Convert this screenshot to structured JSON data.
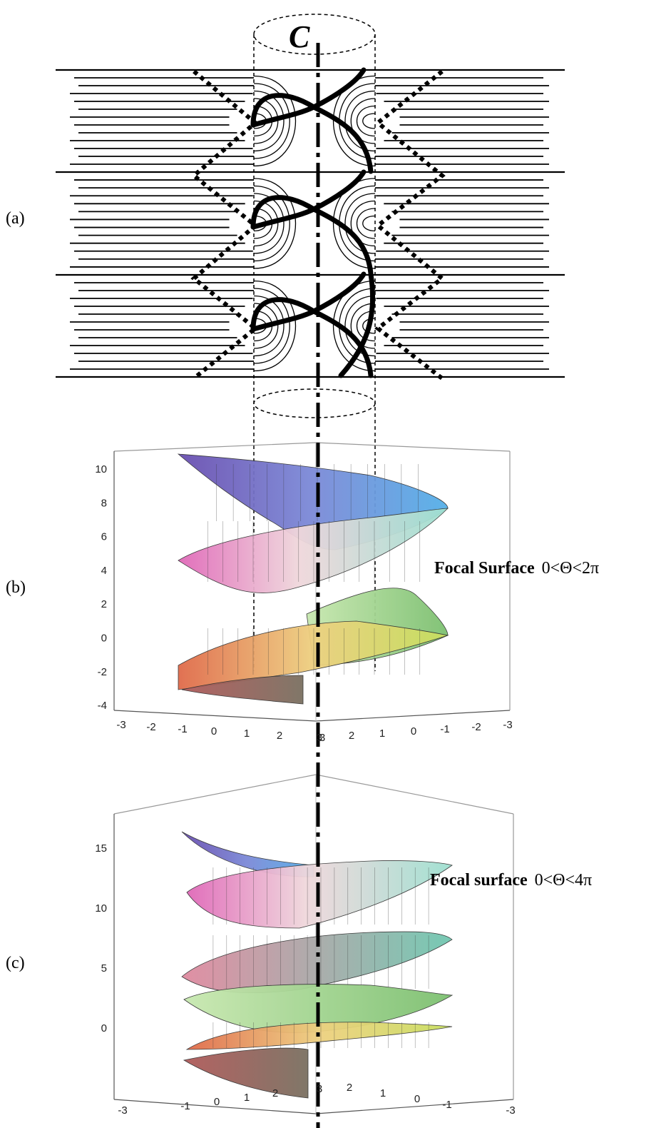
{
  "panel_a": {
    "label": "(a)",
    "axis_label": "C"
  },
  "panel_b": {
    "label": "(b)",
    "caption_title": "Focal Surface",
    "caption_range": "0<Θ<2π",
    "z_ticks": [
      "10",
      "8",
      "6",
      "4",
      "2",
      "0",
      "-2",
      "-4"
    ],
    "x_ticks_left": [
      "-3",
      "-2",
      "-1",
      "0",
      "1",
      "2",
      "3"
    ],
    "x_ticks_right": [
      "3",
      "2",
      "1",
      "0",
      "-1",
      "-2",
      "-3"
    ]
  },
  "panel_c": {
    "label": "(c)",
    "caption_title": "Focal surface",
    "caption_range": "0<Θ<4π",
    "z_ticks": [
      "15",
      "10",
      "5",
      "0"
    ],
    "x_ticks_left": [
      "-3",
      "-1",
      "0",
      "1",
      "2",
      "3"
    ],
    "x_ticks_right": [
      "2",
      "1",
      "0",
      "-1",
      "-3"
    ]
  }
}
